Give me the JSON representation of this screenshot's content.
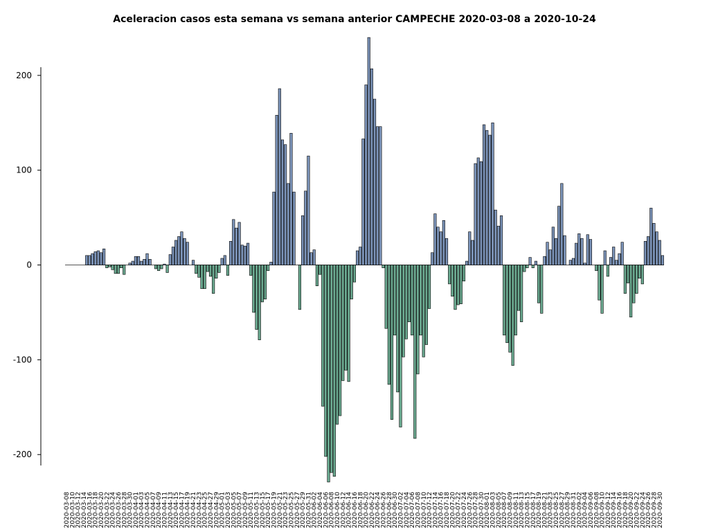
{
  "chart_data": {
    "type": "bar",
    "title": "Aceleracion casos esta semana vs semana anterior CAMPECHE 2020-03-08 a 2020-10-24",
    "xlabel": "",
    "ylabel": "",
    "ylim": [
      -232,
      243
    ],
    "yticks": [
      -200,
      -100,
      0,
      100,
      200
    ],
    "start_date": "2020-03-08",
    "positive_color": "#7b93b8",
    "negative_color": "#6aa88f",
    "edge_color": "#000000",
    "values": [
      0,
      0,
      0,
      0,
      0,
      0,
      0,
      10,
      10,
      12,
      14,
      15,
      13,
      17,
      -3,
      -2,
      -5,
      -9,
      -9,
      -3,
      -10,
      0,
      2,
      4,
      9,
      9,
      4,
      6,
      12,
      6,
      0,
      -4,
      -6,
      -4,
      1,
      -8,
      11,
      19,
      26,
      30,
      35,
      28,
      24,
      0,
      5,
      -9,
      -13,
      -25,
      -25,
      -7,
      -12,
      -30,
      -14,
      -8,
      7,
      10,
      -11,
      25,
      48,
      39,
      45,
      21,
      20,
      23,
      -11,
      -50,
      -68,
      -79,
      -39,
      -36,
      -6,
      3,
      77,
      158,
      186,
      132,
      127,
      86,
      139,
      77,
      0,
      -47,
      52,
      78,
      115,
      13,
      16,
      -22,
      -10,
      -149,
      -202,
      -229,
      -219,
      -223,
      -168,
      -159,
      -122,
      -111,
      -123,
      -36,
      -18,
      15,
      19,
      133,
      190,
      240,
      207,
      175,
      146,
      146,
      -3,
      -67,
      -126,
      -163,
      -74,
      -134,
      -171,
      -97,
      -78,
      -60,
      -74,
      -183,
      -115,
      -74,
      -97,
      -84,
      -46,
      13,
      54,
      40,
      35,
      47,
      28,
      -20,
      -33,
      -47,
      -42,
      -41,
      -17,
      4,
      35,
      26,
      107,
      113,
      109,
      148,
      142,
      137,
      150,
      58,
      41,
      52,
      -74,
      -82,
      -92,
      -106,
      -74,
      -48,
      -60,
      -7,
      -3,
      8,
      -3,
      4,
      -40,
      -51,
      9,
      24,
      16,
      40,
      28,
      62,
      86,
      31,
      0,
      5,
      7,
      23,
      33,
      28,
      2,
      32,
      27,
      0,
      -6,
      -37,
      -51,
      15,
      -12,
      8,
      19,
      5,
      12,
      24,
      -30,
      -19,
      -55,
      -40,
      -30,
      -14,
      -20,
      25,
      30,
      60,
      44,
      35,
      26,
      10
    ]
  }
}
